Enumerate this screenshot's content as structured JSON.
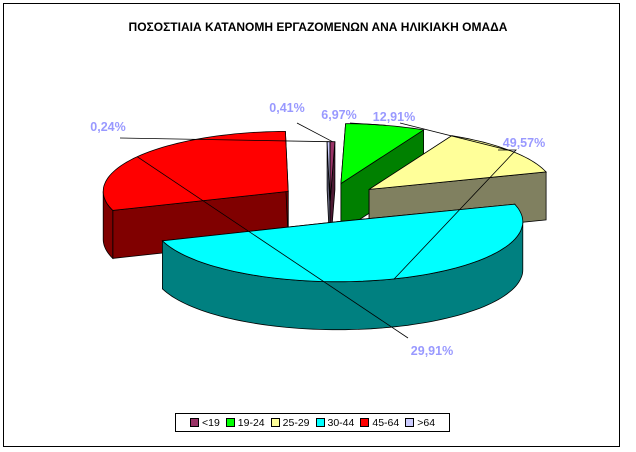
{
  "chart_data": {
    "type": "pie",
    "style": "3d-exploded",
    "title": "ΠΟΣΟΣΤΙΑΙΑ ΚΑΤΑΝΟΜΗ ΕΡΓΑΖΟΜΕΝΩΝ ΑΝΑ ΗΛΙΚΙΑΚΗ ΟΜΑΔΑ",
    "categories": [
      "<19",
      "19-24",
      "25-29",
      "30-44",
      "45-64",
      ">64"
    ],
    "values": [
      0.41,
      6.97,
      12.91,
      49.57,
      29.91,
      0.24
    ],
    "data_labels": [
      "0,41%",
      "6,97%",
      "12,91%",
      "49,57%",
      "29,91%",
      "0,24%"
    ],
    "colors": [
      "#993366",
      "#00ff00",
      "#ffff99",
      "#00ffff",
      "#ff0000",
      "#ccccff"
    ],
    "side_colors": [
      "#4d1a33",
      "#008000",
      "#808060",
      "#008080",
      "#800000",
      "#66667f"
    ],
    "label_color": "#9999ff",
    "legend_position": "bottom"
  }
}
